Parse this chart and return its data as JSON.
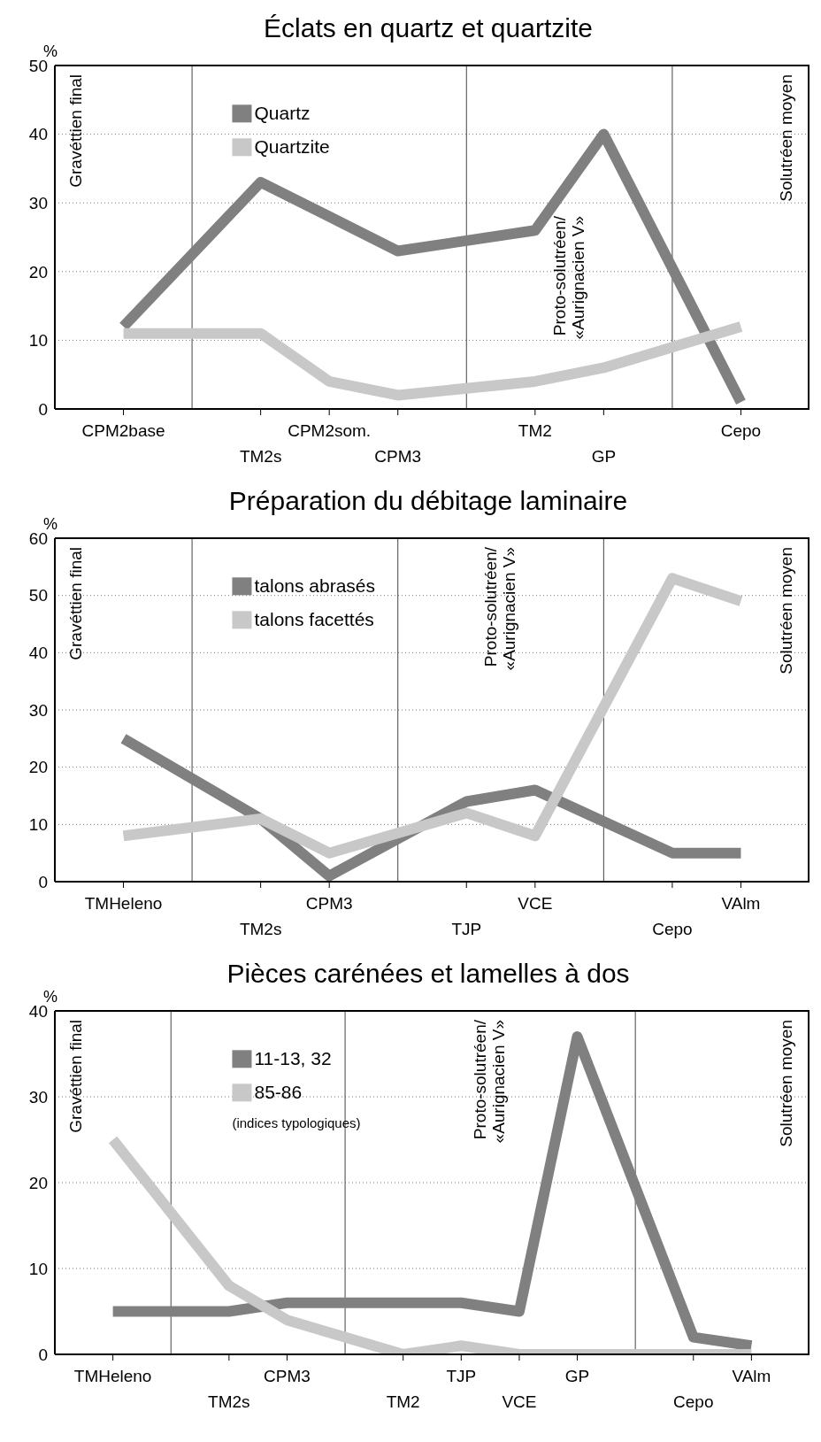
{
  "chart_data": [
    {
      "type": "line",
      "title": "Éclats en quartz et quartzite",
      "ylabel": "%",
      "categories": [
        "CPM2base",
        null,
        "TM2s",
        "CPM2som.",
        "CPM3",
        null,
        "TM2",
        "GP",
        null,
        "Cepo"
      ],
      "series": [
        {
          "name": "Quartz",
          "color": "#808080",
          "values": [
            12,
            null,
            33,
            28,
            23,
            null,
            26,
            40,
            null,
            1
          ]
        },
        {
          "name": "Quartzite",
          "color": "#c8c8c8",
          "values": [
            11,
            null,
            11,
            4,
            2,
            null,
            4,
            6,
            null,
            12
          ]
        }
      ],
      "ylim": [
        0,
        50
      ],
      "yticks": [
        0,
        10,
        20,
        30,
        40,
        50
      ],
      "grid": true,
      "legend": "top left",
      "annotations": [
        "Gravéttien final",
        "Proto-solutréen/\n«Aurignacien V»",
        "Solutréen moyen"
      ]
    },
    {
      "type": "line",
      "title": "Préparation du débitage laminaire",
      "ylabel": "%",
      "categories": [
        "TMHeleno",
        null,
        "TM2s",
        "CPM3",
        null,
        "TJP",
        "VCE",
        null,
        "Cepo",
        "VAlm"
      ],
      "series": [
        {
          "name": "talons abrasés",
          "color": "#808080",
          "values": [
            25,
            null,
            11,
            1,
            null,
            14,
            16,
            null,
            5,
            5
          ]
        },
        {
          "name": "talons facettés",
          "color": "#c8c8c8",
          "values": [
            8,
            null,
            11,
            5,
            null,
            12,
            8,
            null,
            53,
            49
          ]
        }
      ],
      "ylim": [
        0,
        60
      ],
      "yticks": [
        0,
        10,
        20,
        30,
        40,
        50,
        60
      ],
      "grid": true,
      "legend": "top left",
      "annotations": [
        "Gravéttien final",
        "Proto-solutréen/\n«Aurignacien V»",
        "Solutréen moyen"
      ]
    },
    {
      "type": "line",
      "title": "Pièces carénées et lamelles à dos",
      "ylabel": "%",
      "categories": [
        "TMHeleno",
        null,
        "TM2s",
        "CPM3",
        null,
        "TM2",
        "TJP",
        "VCE",
        "GP",
        null,
        "Cepo",
        "VAlm"
      ],
      "series": [
        {
          "name": "11-13, 32",
          "color": "#808080",
          "values": [
            5,
            null,
            5,
            6,
            null,
            6,
            6,
            5,
            37,
            null,
            2,
            1
          ]
        },
        {
          "name": "85-86",
          "color": "#c8c8c8",
          "values": [
            25,
            null,
            8,
            4,
            null,
            0,
            1,
            0,
            0,
            null,
            0,
            0
          ]
        }
      ],
      "ylim": [
        0,
        40
      ],
      "yticks": [
        0,
        10,
        20,
        30,
        40
      ],
      "grid": true,
      "legend": "top left",
      "annotations": [
        "(indices typologiques)",
        "Gravéttien final",
        "Proto-solutréen/\n«Aurignacien V»",
        "Solutréen moyen"
      ]
    }
  ]
}
